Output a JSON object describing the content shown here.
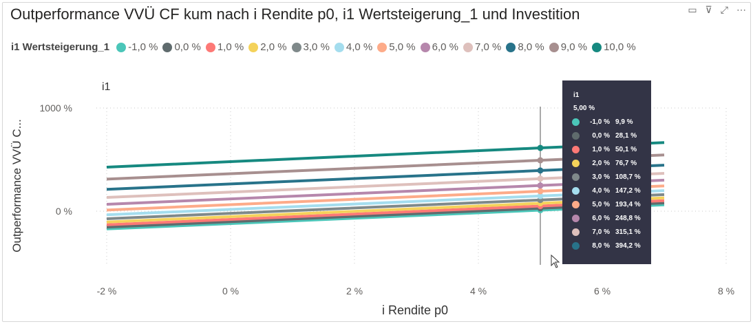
{
  "title": "Outperformance VVÜ CF kum nach i Rendite p0, i1 Wertsteigerung_1 und Investition",
  "header_icons": [
    "comment-icon",
    "filter-icon",
    "focus-mode-icon",
    "more-options-icon"
  ],
  "legend": {
    "title": "i1 Wertsteigerung_1",
    "position": "top"
  },
  "subtitle": "i1",
  "tooltip": {
    "title": "i1",
    "x_value": "5,00 %",
    "rows": [
      {
        "label": "-1,0 %",
        "value": "9,9 %"
      },
      {
        "label": "0,0 %",
        "value": "28,1 %"
      },
      {
        "label": "1,0 %",
        "value": "50,1 %"
      },
      {
        "label": "2,0 %",
        "value": "76,7 %"
      },
      {
        "label": "3,0 %",
        "value": "108,7 %"
      },
      {
        "label": "4,0 %",
        "value": "147,2 %"
      },
      {
        "label": "5,0 %",
        "value": "193,4 %"
      },
      {
        "label": "6,0 %",
        "value": "248,8 %"
      },
      {
        "label": "7,0 %",
        "value": "315,1 %"
      },
      {
        "label": "8,0 %",
        "value": "394,2 %"
      }
    ]
  },
  "chart_data": {
    "type": "line",
    "xlabel": "i Rendite p0",
    "ylabel": "Outperformance VVÜ C...",
    "xlim": [
      -2,
      8
    ],
    "ylim": [
      -500,
      1100
    ],
    "x_ticks": [
      "-2 %",
      "0 %",
      "2 %",
      "4 %",
      "6 %",
      "8 %"
    ],
    "x_tick_values": [
      -2,
      0,
      2,
      4,
      6,
      8
    ],
    "y_ticks": [
      "1000 %",
      "0 %"
    ],
    "y_tick_values": [
      1000,
      0
    ],
    "grid": true,
    "hover_x": 5,
    "x": [
      -2,
      5,
      7
    ],
    "series": [
      {
        "name": "-1,0 %",
        "color": "#4BC6B9",
        "values": [
          -172,
          9.9,
          62
        ]
      },
      {
        "name": "0,0 %",
        "color": "#5F6B6D",
        "values": [
          -154,
          28.1,
          80
        ]
      },
      {
        "name": "1,0 %",
        "color": "#FD7976",
        "values": [
          -132,
          50.1,
          102
        ]
      },
      {
        "name": "2,0 %",
        "color": "#F4D25A",
        "values": [
          -105,
          76.7,
          129
        ]
      },
      {
        "name": "3,0 %",
        "color": "#7F898A",
        "values": [
          -73,
          108.7,
          161
        ]
      },
      {
        "name": "4,0 %",
        "color": "#A4DDEE",
        "values": [
          -35,
          147.2,
          199
        ]
      },
      {
        "name": "5,0 %",
        "color": "#FDAB89",
        "values": [
          11,
          193.4,
          245
        ]
      },
      {
        "name": "6,0 %",
        "color": "#B687AC",
        "values": [
          67,
          248.8,
          301
        ]
      },
      {
        "name": "7,0 %",
        "color": "#DEC0BC",
        "values": [
          133,
          315.1,
          367
        ]
      },
      {
        "name": "8,0 %",
        "color": "#28738A",
        "values": [
          212,
          394.2,
          446
        ]
      },
      {
        "name": "9,0 %",
        "color": "#A78F8F",
        "values": [
          311,
          493,
          545
        ]
      },
      {
        "name": "10,0 %",
        "color": "#168980",
        "values": [
          427,
          613,
          665
        ]
      }
    ]
  }
}
